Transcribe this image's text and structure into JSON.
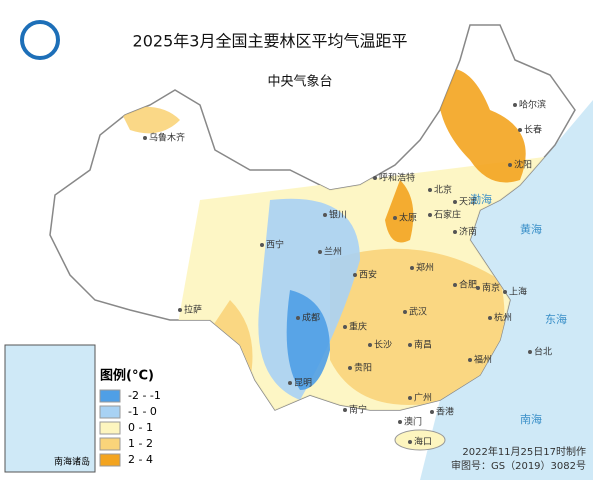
{
  "header": {
    "title": "2025年3月全国主要林区平均气温距平",
    "subtitle": "中央气象台"
  },
  "legend": {
    "title": "图例(°C)",
    "items": [
      {
        "label": "-2 - -1",
        "color": "#4f9fe6"
      },
      {
        "label": "-1 - 0",
        "color": "#a8d2f4"
      },
      {
        "label": "0 - 1",
        "color": "#fdf5bf"
      },
      {
        "label": "1 - 2",
        "color": "#f9d47a"
      },
      {
        "label": "2 - 4",
        "color": "#f3a41f"
      }
    ]
  },
  "cities": [
    "乌鲁木齐",
    "哈尔滨",
    "长春",
    "沈阳",
    "呼和浩特",
    "北京",
    "天津",
    "银川",
    "太原",
    "石家庄",
    "西宁",
    "兰州",
    "济南",
    "郑州",
    "西安",
    "拉萨",
    "合肥",
    "南京",
    "上海",
    "成都",
    "武汉",
    "重庆",
    "杭州",
    "长沙",
    "南昌",
    "贵阳",
    "福州",
    "台北",
    "昆明",
    "南宁",
    "广州",
    "香港",
    "澳门",
    "海口"
  ],
  "seas": [
    "渤海",
    "黄海",
    "东海",
    "南海"
  ],
  "inset_label": "南海诸岛",
  "footer": {
    "made": "2022年11月25日17时制作",
    "approval": "审图号：GS（2019）3082号"
  }
}
